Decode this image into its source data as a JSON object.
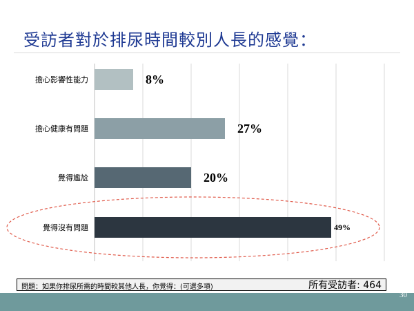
{
  "slide": {
    "title": "受訪者對於排尿時間較別人長的感覺：",
    "question": "問題：如果你排尿所需的時間較其他人長，你覺得：(可選多項)",
    "respondents": "所有受訪者: 464",
    "page_number": "30"
  },
  "chart_data": {
    "type": "bar",
    "orientation": "horizontal",
    "title": "",
    "xlabel": "",
    "ylabel": "",
    "categories": [
      "擔心影響性能力",
      "擔心健康有問題",
      "覺得尷尬",
      "覺得沒有問題"
    ],
    "values": [
      8,
      27,
      20,
      49
    ],
    "value_labels": [
      "8%",
      "27%",
      "20%",
      "49%"
    ],
    "xlim": [
      0,
      60
    ],
    "grid": true,
    "colors": [
      "#b2c0c2",
      "#8c9fa6",
      "#566873",
      "#2c3640"
    ],
    "highlight": {
      "category": "覺得沒有問題",
      "shape": "dashed-ellipse",
      "color": "#e05a4a"
    }
  }
}
